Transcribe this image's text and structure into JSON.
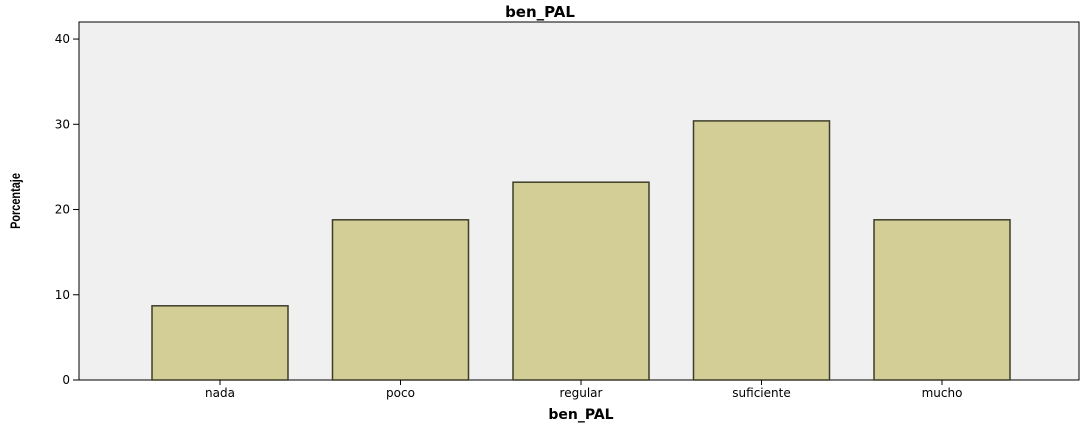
{
  "chart_data": {
    "type": "bar",
    "title": "ben_PAL",
    "xlabel": "ben_PAL",
    "ylabel": "Porcentaje",
    "categories": [
      "nada",
      "poco",
      "regular",
      "suficiente",
      "mucho"
    ],
    "values": [
      8.7,
      18.8,
      23.2,
      30.4,
      18.8
    ],
    "ylim": [
      0,
      42
    ],
    "yticks": [
      0,
      10,
      20,
      30,
      40
    ],
    "grid": false,
    "colors": {
      "bar": "#d3ce96",
      "bar_edge": "#3d3d2a",
      "plot_background": "#f0f0f0"
    }
  }
}
